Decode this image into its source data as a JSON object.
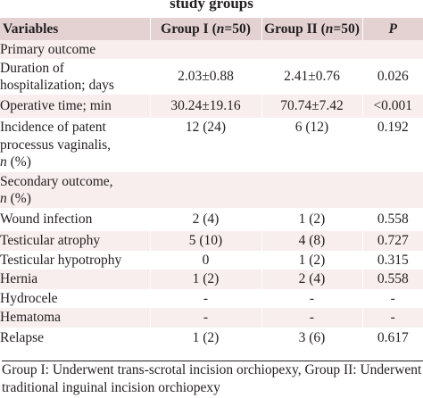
{
  "caption": "study groups",
  "header": {
    "variables": "Variables",
    "group1_prefix": "Group I (",
    "group1_n": "n",
    "group1_suffix": "=50)",
    "group2_prefix": "Group II (",
    "group2_n": "n",
    "group2_suffix": "=50)",
    "p": "P"
  },
  "sections": {
    "primary": "Primary outcome",
    "secondary_line1": "Secondary outcome,",
    "secondary_n": "n",
    "secondary_pct": " (%)"
  },
  "rows": {
    "hosp": {
      "label_l1": "Duration of",
      "label_l2": "hospitalization; days",
      "g1": "2.03±0.88",
      "g2": "2.41±0.76",
      "p": "0.026"
    },
    "optime": {
      "label": "Operative time; min",
      "g1": "30.24±19.16",
      "g2": "70.74±7.42",
      "p": "<0.001"
    },
    "ppv": {
      "label_l1": "Incidence of patent",
      "label_l2": "processus vaginalis,",
      "label_n": "n",
      "label_pct": " (%)",
      "g1": "12 (24)",
      "g2": "6 (12)",
      "p": "0.192"
    },
    "wound": {
      "label": "Wound infection",
      "g1": "2 (4)",
      "g2": "1 (2)",
      "p": "0.558"
    },
    "atrophy": {
      "label": "Testicular atrophy",
      "g1": "5 (10)",
      "g2": "4 (8)",
      "p": "0.727"
    },
    "hypotrophy": {
      "label": "Testicular hypotrophy",
      "g1": "0",
      "g2": "1 (2)",
      "p": "0.315"
    },
    "hernia": {
      "label": "Hernia",
      "g1": "1 (2)",
      "g2": "2 (4)",
      "p": "0.558"
    },
    "hydrocele": {
      "label": "Hydrocele",
      "g1": "-",
      "g2": "-",
      "p": "-"
    },
    "hematoma": {
      "label": "Hematoma",
      "g1": "-",
      "g2": "-",
      "p": "-"
    },
    "relapse": {
      "label": "Relapse",
      "g1": "1 (2)",
      "g2": "3 (6)",
      "p": "0.617"
    }
  },
  "footnote": "Group I: Underwent trans-scrotal incision orchiopexy, Group II: Underwent traditional inguinal incision orchiopexy"
}
